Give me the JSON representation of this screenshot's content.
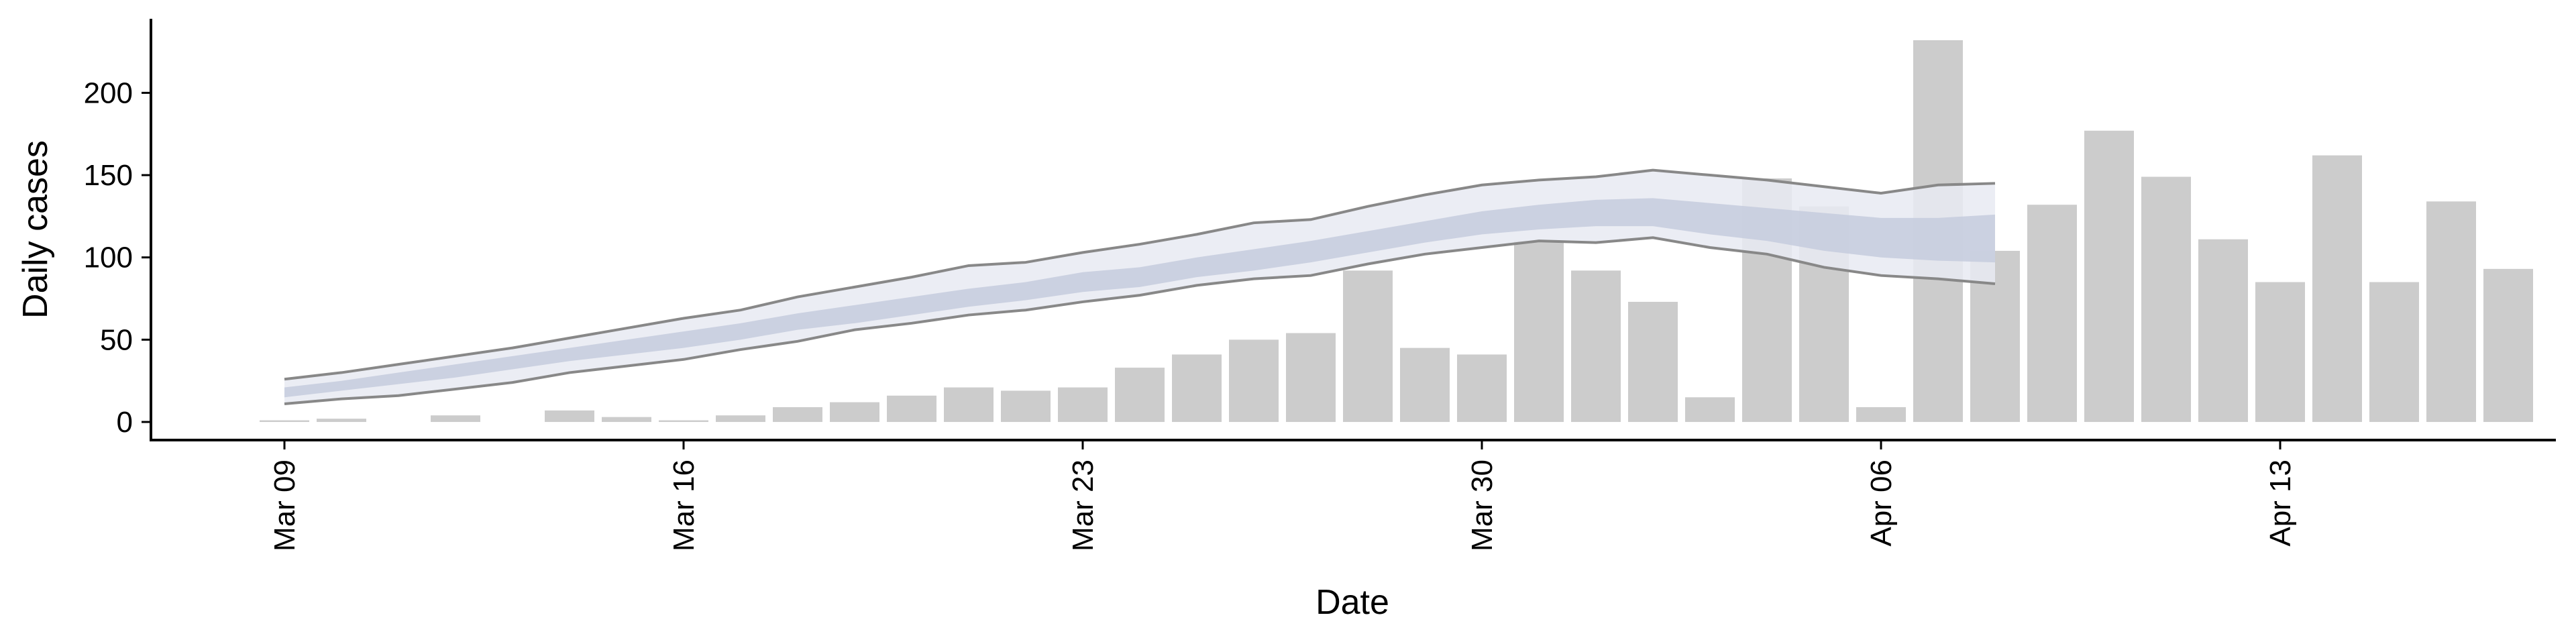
{
  "chart_data": {
    "type": "bar",
    "x_label": "Date",
    "y_label": "Daily cases",
    "categories": [
      "Mar 09",
      "Mar 10",
      "Mar 11",
      "Mar 12",
      "Mar 13",
      "Mar 14",
      "Mar 15",
      "Mar 16",
      "Mar 17",
      "Mar 18",
      "Mar 19",
      "Mar 20",
      "Mar 21",
      "Mar 22",
      "Mar 23",
      "Mar 24",
      "Mar 25",
      "Mar 26",
      "Mar 27",
      "Mar 28",
      "Mar 29",
      "Mar 30",
      "Mar 31",
      "Apr 01",
      "Apr 02",
      "Apr 03",
      "Apr 04",
      "Apr 05",
      "Apr 06",
      "Apr 07",
      "Apr 08",
      "Apr 09",
      "Apr 10",
      "Apr 11",
      "Apr 12",
      "Apr 13",
      "Apr 14",
      "Apr 15",
      "Apr 16",
      "Apr 17"
    ],
    "values": [
      1,
      2,
      0,
      4,
      0,
      7,
      3,
      1,
      4,
      9,
      12,
      16,
      21,
      19,
      21,
      33,
      41,
      50,
      54,
      92,
      45,
      41,
      110,
      92,
      73,
      15,
      148,
      131,
      9,
      232,
      104,
      132,
      177,
      149,
      111,
      85,
      162,
      85,
      134,
      93
    ],
    "color": "#cccccc",
    "bands": [
      {
        "color": "#e8eaf2",
        "line_color": "#888888",
        "lower": [
          11,
          14,
          16,
          20,
          24,
          30,
          34,
          38,
          44,
          49,
          56,
          60,
          65,
          68,
          73,
          77,
          83,
          87,
          89,
          96,
          102,
          106,
          110,
          109,
          112,
          106,
          102,
          94,
          89,
          87,
          84
        ],
        "upper": [
          26,
          30,
          35,
          40,
          45,
          51,
          57,
          63,
          68,
          76,
          82,
          88,
          95,
          97,
          103,
          108,
          114,
          121,
          123,
          131,
          138,
          144,
          147,
          149,
          153,
          150,
          147,
          143,
          139,
          144,
          145
        ]
      },
      {
        "color": "#c5cbdd",
        "lower": [
          15,
          19,
          23,
          27,
          32,
          37,
          41,
          45,
          50,
          56,
          60,
          65,
          70,
          74,
          79,
          82,
          88,
          92,
          97,
          103,
          109,
          114,
          117,
          119,
          119,
          114,
          110,
          104,
          100,
          98,
          97
        ],
        "upper": [
          21,
          25,
          30,
          35,
          40,
          45,
          50,
          55,
          60,
          66,
          71,
          76,
          81,
          85,
          91,
          94,
          100,
          105,
          110,
          116,
          122,
          128,
          132,
          135,
          136,
          133,
          130,
          127,
          124,
          124,
          126
        ]
      }
    ],
    "xticks": [
      "Mar 09",
      "Mar 16",
      "Mar 23",
      "Mar 30",
      "Apr 06",
      "Apr 13"
    ],
    "ylim": [
      -11,
      245
    ],
    "yticks": [
      0,
      50,
      100,
      150,
      200
    ],
    "grid": false
  }
}
